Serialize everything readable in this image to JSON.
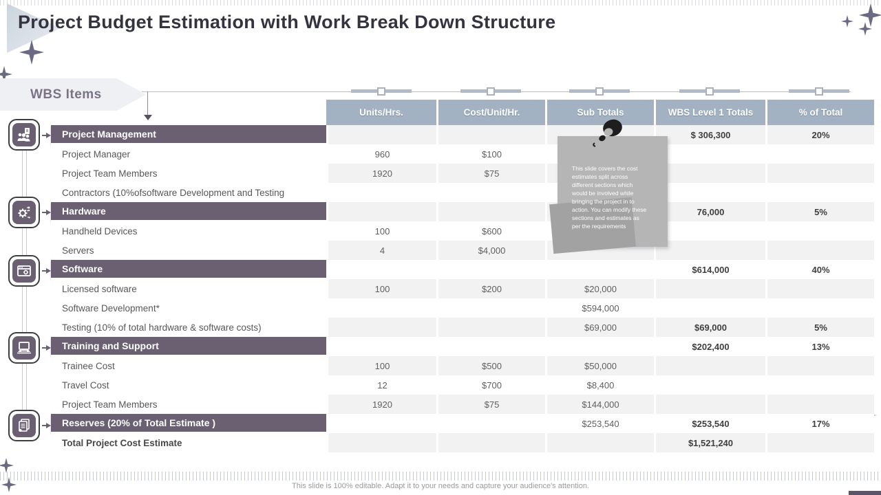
{
  "slide": {
    "title": "Project Budget Estimation with Work Break Down Structure",
    "wbs_label": "WBS Items",
    "footer": "This slide is 100% editable. Adapt it to your needs and capture your audience's attention."
  },
  "note": {
    "text": "This slide covers the cost\nestimates split across\ndifferent sections which\nwould be involved while\nbringing the project in to\naction. You can modify these\nsections and estimates as\nper the requirements"
  },
  "table": {
    "columns": [
      "Units/Hrs.",
      "Cost/Unit/Hr.",
      "Sub Totals",
      "WBS Level 1 Totals",
      "% of Total"
    ],
    "rows": [
      {
        "type": "section",
        "label": "Project Management",
        "units": "",
        "cost": "",
        "sub": "",
        "wbs": "$ 306,300",
        "pct": "20%"
      },
      {
        "type": "item",
        "label": "Project Manager",
        "units": "960",
        "cost": "$100",
        "sub": "",
        "wbs": "",
        "pct": ""
      },
      {
        "type": "item",
        "label": "Project Team Members",
        "units": "1920",
        "cost": "$75",
        "sub": "",
        "wbs": "",
        "pct": ""
      },
      {
        "type": "item",
        "label": "Contractors (10%ofsoftware Development and Testing",
        "units": "",
        "cost": "",
        "sub": "",
        "wbs": "",
        "pct": ""
      },
      {
        "type": "section",
        "label": "Hardware",
        "units": "",
        "cost": "",
        "sub": "",
        "wbs": "76,000",
        "pct": "5%"
      },
      {
        "type": "item",
        "label": "Handheld Devices",
        "units": "100",
        "cost": "$600",
        "sub": "",
        "wbs": "",
        "pct": ""
      },
      {
        "type": "item",
        "label": "Servers",
        "units": "4",
        "cost": "$4,000",
        "sub": "",
        "wbs": "",
        "pct": ""
      },
      {
        "type": "section",
        "label": "Software",
        "units": "",
        "cost": "",
        "sub": "",
        "wbs": "$614,000",
        "pct": "40%"
      },
      {
        "type": "item",
        "label": "Licensed software",
        "units": "100",
        "cost": "$200",
        "sub": "$20,000",
        "wbs": "",
        "pct": ""
      },
      {
        "type": "item",
        "label": "Software Development*",
        "units": "",
        "cost": "",
        "sub": "$594,000",
        "wbs": "",
        "pct": ""
      },
      {
        "type": "item",
        "label": "Testing (10% of total hardware & software costs)",
        "units": "",
        "cost": "",
        "sub": "$69,000",
        "wbs": "$69,000",
        "pct": "5%"
      },
      {
        "type": "section",
        "label": "Training and Support",
        "units": "",
        "cost": "",
        "sub": "",
        "wbs": "$202,400",
        "pct": "13%"
      },
      {
        "type": "item",
        "label": "Trainee Cost",
        "units": "100",
        "cost": "$500",
        "sub": "$50,000",
        "wbs": "",
        "pct": ""
      },
      {
        "type": "item",
        "label": "Travel Cost",
        "units": "12",
        "cost": "$700",
        "sub": "$8,400",
        "wbs": "",
        "pct": ""
      },
      {
        "type": "item",
        "label": "Project Team Members",
        "units": "1920",
        "cost": "$75",
        "sub": "$144,000",
        "wbs": "",
        "pct": ""
      },
      {
        "type": "section",
        "label": "Reserves (20% of Total Estimate )",
        "units": "",
        "cost": "",
        "sub": "$253,540",
        "wbs": "$253,540",
        "pct": "17%"
      },
      {
        "type": "total",
        "label": "Total Project Cost Estimate",
        "units": "",
        "cost": "",
        "sub": "",
        "wbs": "$1,521,240",
        "pct": ""
      }
    ]
  },
  "icons": [
    "team-document-icon",
    "gear-process-icon",
    "software-window-icon",
    "laptop-icon",
    "documents-stack-icon"
  ],
  "colors": {
    "section_band": "#6B6072",
    "table_header": "#A3B2C2",
    "row_stripe": "#F2F2F3",
    "note_gray": "#B5B5B5",
    "star_dark": "#6A6A82",
    "star_blue": "#A9BDD3"
  }
}
